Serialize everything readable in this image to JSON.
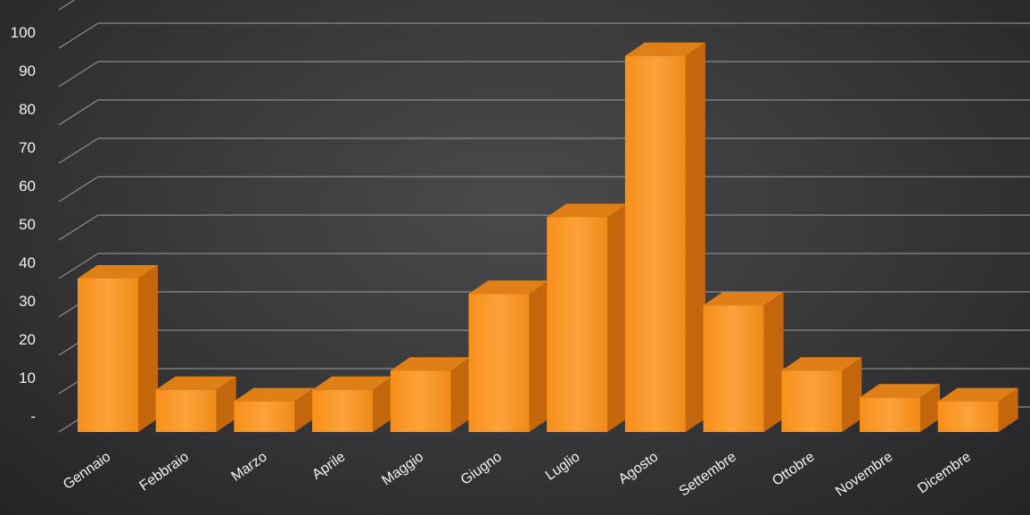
{
  "chart_data": {
    "type": "bar",
    "title": "",
    "xlabel": "",
    "ylabel": "",
    "categories": [
      "Gennaio",
      "Febbraio",
      "Marzo",
      "Aprile",
      "Maggio",
      "Giugno",
      "Luglio",
      "Agosto",
      "Settembre",
      "Ottobre",
      "Novembre",
      "Dicembre"
    ],
    "values": [
      40,
      11,
      8,
      11,
      16,
      36,
      56,
      98,
      33,
      16,
      9,
      8
    ],
    "ylim": [
      0,
      100
    ],
    "yticks": [
      "-",
      "10",
      "20",
      "30",
      "40",
      "50",
      "60",
      "70",
      "80",
      "90",
      "100"
    ],
    "grid": true,
    "legend": "none",
    "style": "3d-column",
    "colors": {
      "bar_front": "#f7931e",
      "bar_side": "#c4660c",
      "bar_top": "#e07f16",
      "grid": "#8a8a8c",
      "text": "#f2f2f2",
      "background": "#3a3a3c"
    }
  }
}
